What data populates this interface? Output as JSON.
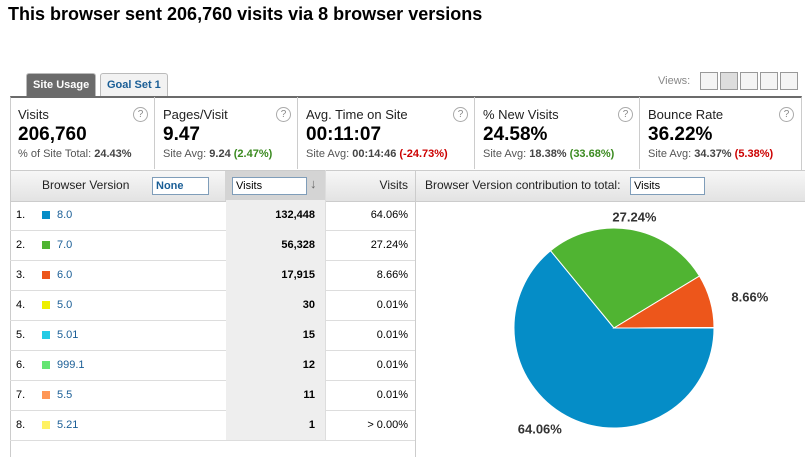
{
  "header": {
    "title": "This browser sent 206,760 visits via 8 browser versions"
  },
  "tabs": [
    "Site Usage",
    "Goal Set 1"
  ],
  "views_label": "Views:",
  "summary": [
    {
      "label": "Visits",
      "value": "206,760",
      "sub_label": "% of Site Total:",
      "sub_value": "24.43%"
    },
    {
      "label": "Pages/Visit",
      "value": "9.47",
      "sub_label": "Site Avg:",
      "sub_value": "9.24",
      "sub_change": "(2.47%)"
    },
    {
      "label": "Avg. Time on Site",
      "value": "00:11:07",
      "sub_label": "Site Avg:",
      "sub_value": "00:14:46",
      "sub_change": "(-24.73%)"
    },
    {
      "label": "% New Visits",
      "value": "24.58%",
      "sub_label": "Site Avg:",
      "sub_value": "18.38%",
      "sub_change": "(33.68%)"
    },
    {
      "label": "Bounce Rate",
      "value": "36.22%",
      "sub_label": "Site Avg:",
      "sub_value": "34.37%",
      "sub_change": "(5.38%)"
    }
  ],
  "table": {
    "columns": [
      "Browser Version",
      "None",
      "Visits",
      "Visits"
    ],
    "rows": [
      [
        "1.",
        "8.0",
        "132,448",
        "64.06%"
      ],
      [
        "2.",
        "7.0",
        "56,328",
        "27.24%"
      ],
      [
        "3.",
        "6.0",
        "17,915",
        "8.66%"
      ],
      [
        "4.",
        "5.0",
        "30",
        "0.01%"
      ],
      [
        "5.",
        "5.01",
        "15",
        "0.01%"
      ],
      [
        "6.",
        "999.1",
        "12",
        "0.01%"
      ],
      [
        "7.",
        "5.5",
        "11",
        "0.01%"
      ],
      [
        "8.",
        "5.21",
        "1",
        "> 0.00%"
      ]
    ]
  },
  "pie": {
    "type": "pie",
    "title": "Browser Version contribution to total:",
    "metric": "Visits",
    "values": [
      64.06,
      27.24,
      8.66,
      0.01,
      0.01,
      0.01,
      0.01,
      0.0005
    ],
    "value_labels": [
      "64.06%",
      "27.24%",
      "8.66%",
      null,
      null,
      null,
      null,
      null
    ],
    "colors": [
      "#058dc7",
      "#50b432",
      "#ed561b",
      "#edef00",
      "#24cbe5",
      "#64e572",
      "#ff9655",
      "#fff263"
    ]
  }
}
